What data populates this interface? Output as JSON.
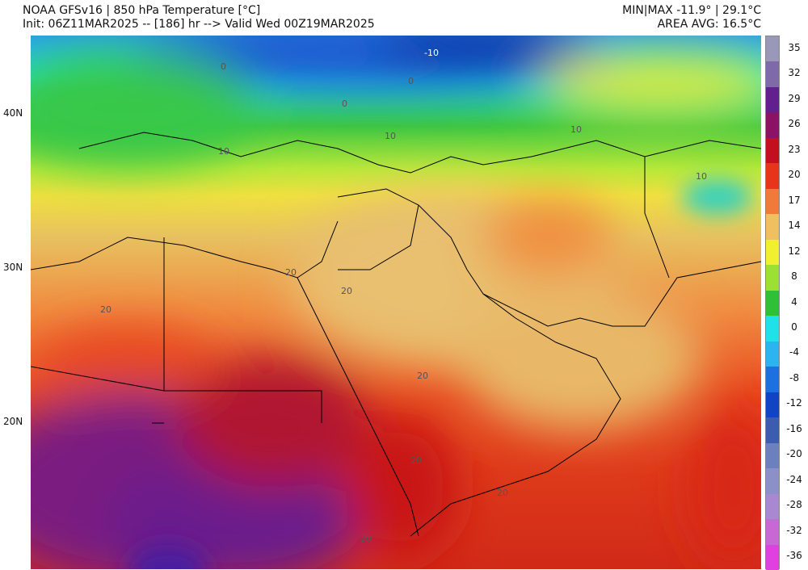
{
  "header": {
    "title": "NOAA GFSv16 | 850 hPa Temperature [°C]",
    "init": "Init: 06Z11MAR2025 -- [186] hr --> Valid Wed 00Z19MAR2025",
    "minmax": "MIN|MAX -11.9° | 29.1°C",
    "area_avg": "AREA AVG: 16.5°C"
  },
  "lat_labels": [
    "40N",
    "30N",
    "20N"
  ],
  "colorbar": {
    "labels": [
      35,
      32,
      29,
      26,
      23,
      20,
      17,
      14,
      12,
      8,
      4,
      0,
      -4,
      -8,
      -12,
      -16,
      -20,
      -24,
      -28,
      -32,
      -36
    ],
    "colors": [
      "#9a98b8",
      "#7e6aa8",
      "#62208e",
      "#8c1266",
      "#c4101e",
      "#e8341a",
      "#f07a3a",
      "#f0c060",
      "#f0f030",
      "#9ce034",
      "#30c038",
      "#20e0e8",
      "#2cb4f0",
      "#1c70e0",
      "#1044c4",
      "#3c5cb0",
      "#6c80c0",
      "#8c90c8",
      "#a888d0",
      "#c868d4",
      "#e040e0"
    ]
  },
  "contour_labels": [
    "-10",
    "0",
    "0",
    "0",
    "10",
    "10",
    "10",
    "10",
    "20",
    "20",
    "20",
    "20",
    "20",
    "20",
    "20"
  ]
}
